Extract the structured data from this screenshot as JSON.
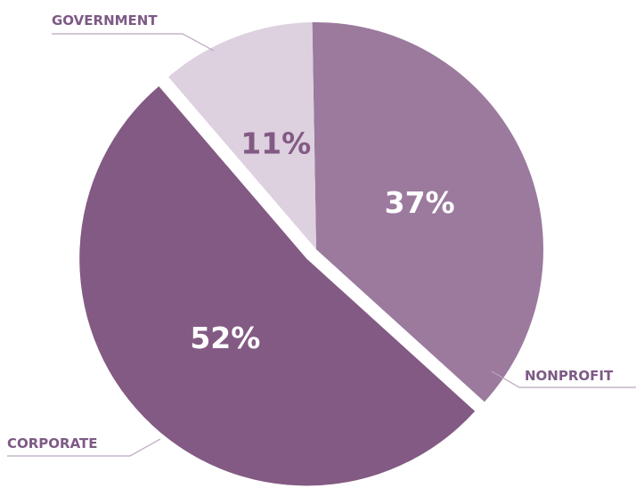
{
  "chart_data": {
    "type": "pie",
    "title": "",
    "slices": [
      {
        "name": "NONPROFIT",
        "value": 37,
        "label": "37%",
        "color": "#9b7a9e",
        "label_color": "#ffffff"
      },
      {
        "name": "CORPORATE",
        "value": 52,
        "label": "52%",
        "color": "#835a84",
        "label_color": "#ffffff"
      },
      {
        "name": "GOVERNMENT",
        "value": 11,
        "label": "11%",
        "color": "#ddd0df",
        "label_color": "#835a84"
      }
    ],
    "legend": "none",
    "exploded_slice": "CORPORATE",
    "colors": {
      "category_label": "#7d5a86",
      "leader_line": "#b9a8bd"
    }
  }
}
